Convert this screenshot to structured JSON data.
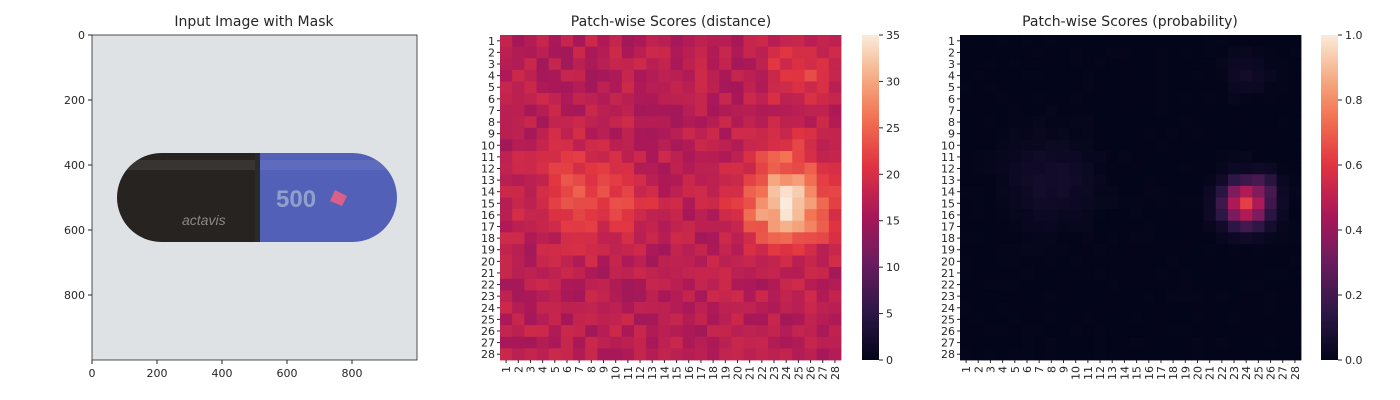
{
  "chart_data": [
    {
      "type": "image",
      "title": "Input Image with Mask",
      "xlim": [
        0,
        1000
      ],
      "ylim": [
        1000,
        0
      ],
      "xticks": [
        0,
        200,
        400,
        600,
        800
      ],
      "yticks": [
        0,
        200,
        400,
        600,
        800
      ],
      "capsule": {
        "left_color": "#262320",
        "right_color": "#5260b8",
        "background_color": "#dfe2e4",
        "brand_text": "actavis",
        "print_text": "500",
        "mask_color": "#f06080"
      }
    },
    {
      "type": "heatmap",
      "title": "Patch-wise Scores (distance)",
      "colormap": "rocket",
      "rows": 28,
      "cols": 28,
      "row_labels": [
        "1",
        "2",
        "3",
        "4",
        "5",
        "6",
        "7",
        "8",
        "9",
        "10",
        "11",
        "12",
        "13",
        "14",
        "15",
        "16",
        "17",
        "18",
        "19",
        "20",
        "21",
        "22",
        "23",
        "24",
        "25",
        "26",
        "27",
        "28"
      ],
      "col_labels": [
        "1",
        "2",
        "3",
        "4",
        "5",
        "6",
        "7",
        "8",
        "9",
        "10",
        "11",
        "12",
        "13",
        "14",
        "15",
        "16",
        "17",
        "18",
        "19",
        "20",
        "21",
        "22",
        "23",
        "24",
        "25",
        "26",
        "27",
        "28"
      ],
      "vmin": 0,
      "vmax": 35,
      "colorbar_ticks": [
        "0",
        "5",
        "10",
        "15",
        "20",
        "25",
        "30",
        "35"
      ],
      "base_value": 17,
      "hotspots": [
        {
          "row": 15,
          "col": 24,
          "peak": 34,
          "spread": 2.4
        },
        {
          "row": 12,
          "col": 24,
          "peak": 25,
          "spread": 2.2
        },
        {
          "row": 14,
          "col": 7,
          "peak": 23,
          "spread": 2.6
        },
        {
          "row": 15,
          "col": 10,
          "peak": 22,
          "spread": 2.2
        },
        {
          "row": 4,
          "col": 25,
          "peak": 22,
          "spread": 1.8
        }
      ]
    },
    {
      "type": "heatmap",
      "title": "Patch-wise Scores (probability)",
      "colormap": "rocket",
      "rows": 28,
      "cols": 28,
      "row_labels": [
        "1",
        "2",
        "3",
        "4",
        "5",
        "6",
        "7",
        "8",
        "9",
        "10",
        "11",
        "12",
        "13",
        "14",
        "15",
        "16",
        "17",
        "18",
        "19",
        "20",
        "21",
        "22",
        "23",
        "24",
        "25",
        "26",
        "27",
        "28"
      ],
      "col_labels": [
        "1",
        "2",
        "3",
        "4",
        "5",
        "6",
        "7",
        "8",
        "9",
        "10",
        "11",
        "12",
        "13",
        "14",
        "15",
        "16",
        "17",
        "18",
        "19",
        "20",
        "21",
        "22",
        "23",
        "24",
        "25",
        "26",
        "27",
        "28"
      ],
      "vmin": 0.0,
      "vmax": 1.0,
      "colorbar_ticks": [
        "0.0",
        "0.2",
        "0.4",
        "0.6",
        "0.8",
        "1.0"
      ],
      "base_value": 0.0,
      "hotspots": [
        {
          "row": 15,
          "col": 24,
          "peak": 0.62,
          "spread": 1.3
        },
        {
          "row": 14,
          "col": 25,
          "peak": 0.35,
          "spread": 1.0
        },
        {
          "row": 13,
          "col": 8,
          "peak": 0.06,
          "spread": 2.5
        },
        {
          "row": 4,
          "col": 24,
          "peak": 0.06,
          "spread": 1.2
        }
      ]
    }
  ]
}
